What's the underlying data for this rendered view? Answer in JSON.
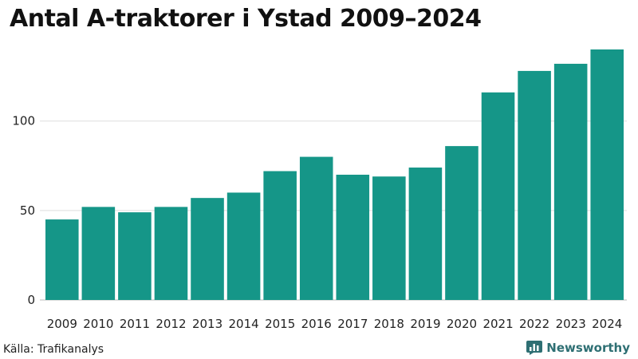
{
  "chart_data": {
    "type": "bar",
    "title": "Antal A-traktorer i Ystad 2009–2024",
    "categories": [
      "2009",
      "2010",
      "2011",
      "2012",
      "2013",
      "2014",
      "2015",
      "2016",
      "2017",
      "2018",
      "2019",
      "2020",
      "2021",
      "2022",
      "2023",
      "2024"
    ],
    "values": [
      45,
      52,
      49,
      52,
      57,
      60,
      72,
      80,
      70,
      69,
      74,
      86,
      116,
      128,
      132,
      140
    ],
    "xlabel": "",
    "ylabel": "",
    "ylim": [
      0,
      140
    ],
    "yticks": [
      0,
      50,
      100
    ],
    "grid": true,
    "bar_color": "#159688"
  },
  "source": "Källa: Trafikanalys",
  "brand": {
    "name": "Newsworthy",
    "icon": "bar-chart-logo-icon",
    "color": "#2e6f73"
  }
}
